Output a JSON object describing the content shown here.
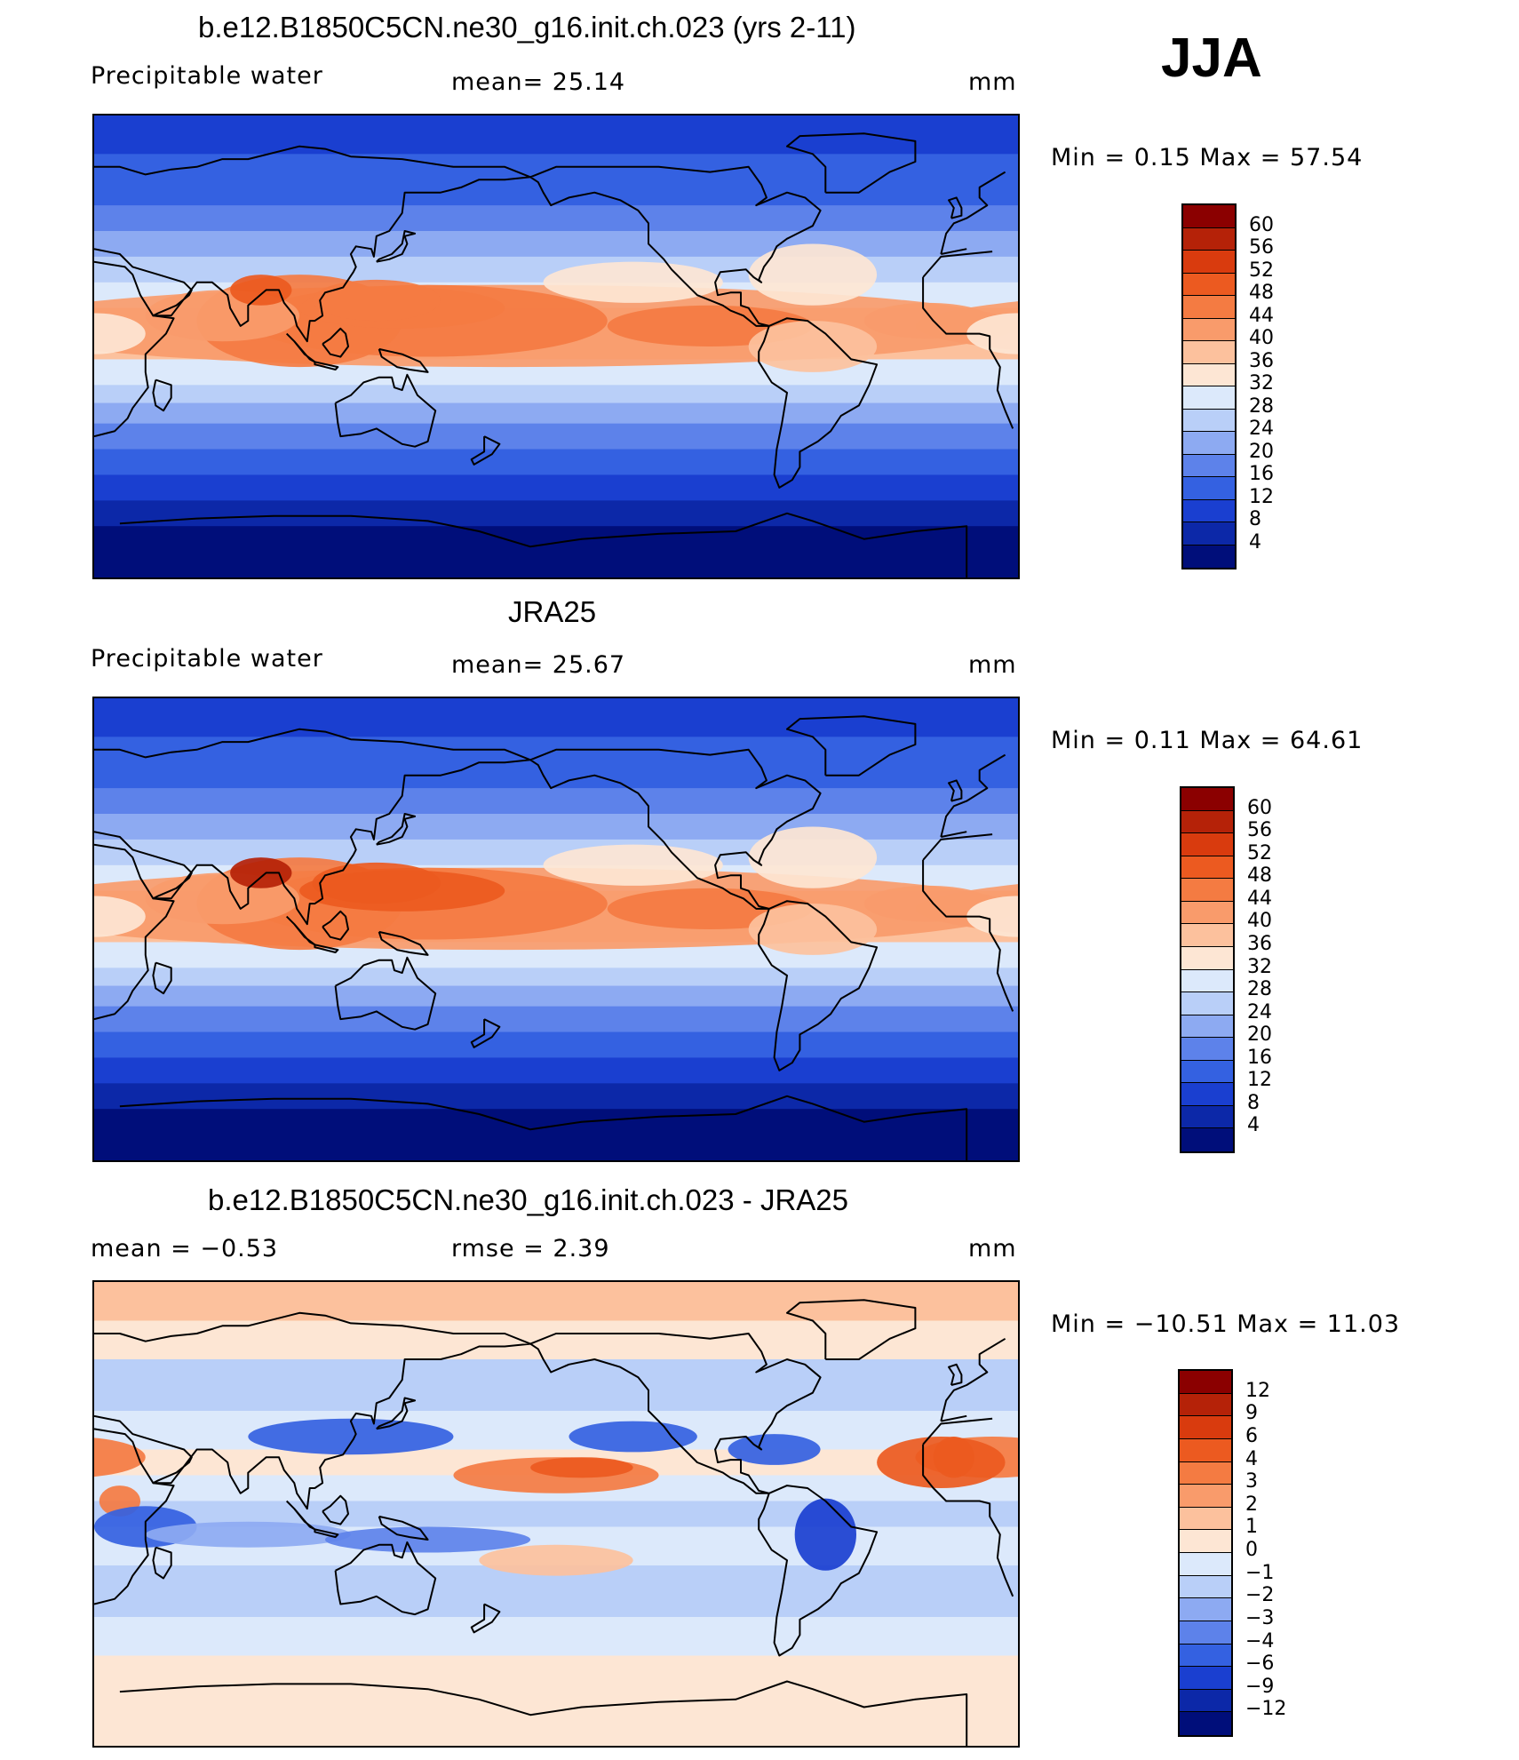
{
  "season": "JJA",
  "panels": [
    {
      "title": "b.e12.B1850C5CN.ne30_g16.init.ch.023 (yrs 2-11)",
      "left_label": "Precipitable  water",
      "mid_label": "mean=   25.14",
      "units": "mm",
      "minmax": "Min  =     0.15  Max  =    57.54"
    },
    {
      "title": "JRA25",
      "left_label": "Precipitable  water",
      "mid_label": "mean=   25.67",
      "units": "mm",
      "minmax": "Min  =     0.11  Max  =    64.61"
    },
    {
      "title": "b.e12.B1850C5CN.ne30_g16.init.ch.023 - JRA25",
      "left_label": "mean  =    −0.53",
      "mid_label": "rmse  =     2.39",
      "units": "mm",
      "minmax": "Min  =  −10.51  Max  =    11.03"
    }
  ],
  "chart_data": [
    {
      "type": "heatmap",
      "title": "b.e12.B1850C5CN.ne30_g16.init.ch.023 (yrs 2-11)",
      "variable": "Precipitable water",
      "units": "mm",
      "mean": 25.14,
      "min": 0.15,
      "max": 57.54,
      "colorbar_levels": [
        "60",
        "56",
        "52",
        "48",
        "44",
        "40",
        "36",
        "32",
        "28",
        "24",
        "20",
        "16",
        "12",
        "8",
        "4"
      ],
      "colorbar_colors": [
        "#8b0000",
        "#b52208",
        "#d93b0e",
        "#ec5a20",
        "#f47b42",
        "#f99b6b",
        "#fcc19d",
        "#fde6d4",
        "#dce9fb",
        "#b9cff8",
        "#8daaf2",
        "#5d82ea",
        "#3461e1",
        "#1a3fd0",
        "#0c28a8",
        "#000e7a"
      ]
    },
    {
      "type": "heatmap",
      "title": "JRA25",
      "variable": "Precipitable water",
      "units": "mm",
      "mean": 25.67,
      "min": 0.11,
      "max": 64.61,
      "colorbar_levels": [
        "60",
        "56",
        "52",
        "48",
        "44",
        "40",
        "36",
        "32",
        "28",
        "24",
        "20",
        "16",
        "12",
        "8",
        "4"
      ],
      "colorbar_colors": [
        "#8b0000",
        "#b52208",
        "#d93b0e",
        "#ec5a20",
        "#f47b42",
        "#f99b6b",
        "#fcc19d",
        "#fde6d4",
        "#dce9fb",
        "#b9cff8",
        "#8daaf2",
        "#5d82ea",
        "#3461e1",
        "#1a3fd0",
        "#0c28a8",
        "#000e7a"
      ]
    },
    {
      "type": "heatmap",
      "title": "b.e12.B1850C5CN.ne30_g16.init.ch.023 - JRA25",
      "units": "mm",
      "mean": -0.53,
      "rmse": 2.39,
      "min": -10.51,
      "max": 11.03,
      "colorbar_levels": [
        "12",
        "9",
        "6",
        "4",
        "3",
        "2",
        "1",
        "0",
        "−1",
        "−2",
        "−3",
        "−4",
        "−6",
        "−9",
        "−12"
      ],
      "colorbar_colors": [
        "#8b0000",
        "#b52208",
        "#d93b0e",
        "#ec5a20",
        "#f47b42",
        "#f99b6b",
        "#fcc19d",
        "#fde6d4",
        "#dce9fb",
        "#b9cff8",
        "#8daaf2",
        "#5d82ea",
        "#3461e1",
        "#1a3fd0",
        "#0c28a8",
        "#000e7a"
      ]
    }
  ]
}
